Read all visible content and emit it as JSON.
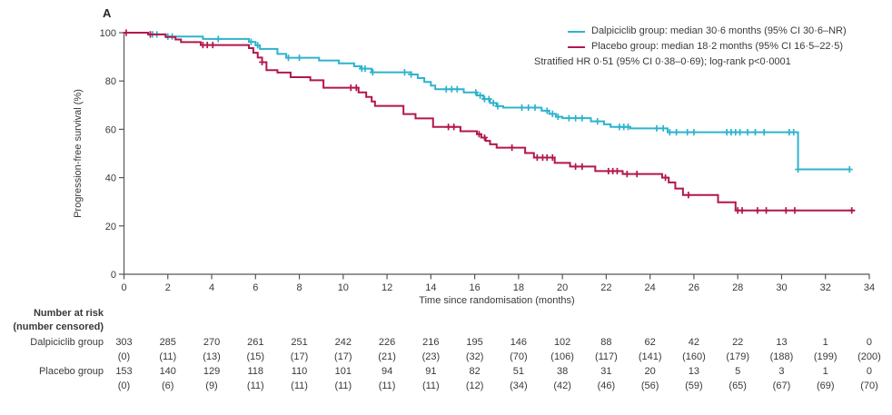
{
  "figure": {
    "panel_label": "A"
  },
  "chart_data": {
    "type": "line",
    "subtype": "kaplan-meier-step",
    "title": "",
    "xlabel": "Time since randomisation (months)",
    "ylabel": "Progression-free survival (%)",
    "xlim": [
      0,
      34
    ],
    "ylim": [
      0,
      100
    ],
    "x_ticks": [
      0,
      2,
      4,
      6,
      8,
      10,
      12,
      14,
      16,
      18,
      20,
      22,
      24,
      26,
      28,
      30,
      32,
      34
    ],
    "y_ticks": [
      0,
      20,
      40,
      60,
      80,
      100
    ],
    "grid": false,
    "legend_position": "top-right",
    "axis_color": "#55565A",
    "text_color": "#39393B",
    "legend": [
      {
        "label": "Dalpiciclib group: median 30·6 months (95% CI 30·6–NR)",
        "color": "#2EB3CD"
      },
      {
        "label": "Placebo group: median 18·2 months (95% CI 16·5–22·5)",
        "color": "#B3164E"
      }
    ],
    "annotation": "Stratified HR 0·51 (95% CI 0·38–0·69); log-rank p<0·0001",
    "series": [
      {
        "name": "Dalpiciclib group",
        "color": "#2EB3CD",
        "steps": [
          [
            0,
            100
          ],
          [
            1.1,
            99.3
          ],
          [
            1.9,
            98.4
          ],
          [
            3.6,
            97.4
          ],
          [
            5.7,
            96.2
          ],
          [
            6.0,
            94.8
          ],
          [
            6.2,
            93.3
          ],
          [
            7.0,
            91.2
          ],
          [
            7.4,
            89.6
          ],
          [
            8.9,
            88.5
          ],
          [
            9.8,
            87.3
          ],
          [
            10.5,
            86.1
          ],
          [
            10.8,
            85.1
          ],
          [
            11.3,
            83.6
          ],
          [
            13.1,
            82.7
          ],
          [
            13.4,
            81.2
          ],
          [
            13.7,
            79.6
          ],
          [
            14.0,
            78.1
          ],
          [
            14.2,
            76.6
          ],
          [
            15.5,
            75.3
          ],
          [
            16.1,
            74.0
          ],
          [
            16.4,
            72.5
          ],
          [
            16.7,
            70.9
          ],
          [
            17.0,
            69.6
          ],
          [
            17.3,
            69.0
          ],
          [
            19.05,
            67.7
          ],
          [
            19.4,
            66.4
          ],
          [
            19.7,
            65.2
          ],
          [
            20.0,
            64.6
          ],
          [
            21.3,
            63.3
          ],
          [
            21.9,
            62.1
          ],
          [
            22.2,
            61.0
          ],
          [
            23.1,
            60.4
          ],
          [
            24.8,
            58.8
          ],
          [
            30.75,
            43.4
          ]
        ],
        "censors": [
          1.3,
          1.5,
          2.0,
          2.2,
          4.3,
          5.8,
          6.1,
          7.5,
          8.0,
          10.85,
          11.0,
          11.35,
          12.8,
          13.1,
          14.7,
          14.95,
          15.2,
          16.05,
          16.25,
          16.45,
          16.65,
          16.85,
          17.05,
          18.15,
          18.45,
          18.75,
          19.3,
          19.55,
          19.8,
          20.3,
          20.6,
          20.9,
          21.6,
          22.6,
          22.8,
          23.0,
          24.3,
          24.6,
          24.9,
          25.2,
          25.7,
          26.0,
          27.5,
          27.7,
          27.9,
          28.1,
          28.45,
          28.8,
          29.2,
          30.35,
          30.55,
          30.75,
          33.1
        ],
        "end": 33.15
      },
      {
        "name": "Placebo group",
        "color": "#B3164E",
        "steps": [
          [
            0,
            100
          ],
          [
            1.1,
            99.3
          ],
          [
            1.9,
            98.2
          ],
          [
            2.35,
            97.2
          ],
          [
            2.6,
            96.1
          ],
          [
            3.5,
            94.9
          ],
          [
            5.7,
            93.6
          ],
          [
            5.9,
            91.7
          ],
          [
            6.1,
            89.7
          ],
          [
            6.3,
            87.8
          ],
          [
            6.5,
            84.5
          ],
          [
            7.0,
            83.5
          ],
          [
            7.6,
            81.6
          ],
          [
            8.5,
            80.3
          ],
          [
            9.1,
            77.2
          ],
          [
            10.7,
            75.3
          ],
          [
            11.05,
            73.4
          ],
          [
            11.3,
            71.5
          ],
          [
            11.45,
            69.7
          ],
          [
            12.75,
            66.3
          ],
          [
            13.3,
            64.5
          ],
          [
            14.1,
            61.0
          ],
          [
            15.35,
            59.2
          ],
          [
            16.1,
            58.0
          ],
          [
            16.3,
            56.6
          ],
          [
            16.5,
            55.2
          ],
          [
            16.7,
            53.8
          ],
          [
            17.0,
            52.4
          ],
          [
            18.3,
            50.2
          ],
          [
            18.7,
            48.3
          ],
          [
            19.65,
            46.1
          ],
          [
            20.35,
            44.6
          ],
          [
            21.5,
            42.7
          ],
          [
            22.75,
            41.5
          ],
          [
            24.55,
            40.0
          ],
          [
            24.85,
            38.0
          ],
          [
            25.15,
            35.5
          ],
          [
            25.5,
            32.8
          ],
          [
            27.1,
            29.8
          ],
          [
            27.9,
            26.4
          ]
        ],
        "censors": [
          0.1,
          1.2,
          3.6,
          3.8,
          4.05,
          6.3,
          10.35,
          10.6,
          14.8,
          15.05,
          16.2,
          16.45,
          17.7,
          18.85,
          19.1,
          19.3,
          19.55,
          20.6,
          20.9,
          22.1,
          22.3,
          22.5,
          22.95,
          23.4,
          24.7,
          25.75,
          28.0,
          28.2,
          28.9,
          29.3,
          30.2,
          30.6,
          33.2
        ],
        "end": 33.35
      }
    ]
  },
  "risk_table": {
    "header": "Number at risk",
    "subheader": "(number censored)",
    "times": [
      0,
      2,
      4,
      6,
      8,
      10,
      12,
      14,
      16,
      18,
      20,
      22,
      24,
      26,
      28,
      30,
      32,
      34
    ],
    "rows": [
      {
        "label": "Dalpiciclib group",
        "at_risk": [
          303,
          285,
          270,
          261,
          251,
          242,
          226,
          216,
          195,
          146,
          102,
          88,
          62,
          42,
          22,
          13,
          1,
          0
        ],
        "censored": [
          "(0)",
          "(11)",
          "(13)",
          "(15)",
          "(17)",
          "(17)",
          "(21)",
          "(23)",
          "(32)",
          "(70)",
          "(106)",
          "(117)",
          "(141)",
          "(160)",
          "(179)",
          "(188)",
          "(199)",
          "(200)"
        ]
      },
      {
        "label": "Placebo group",
        "at_risk": [
          153,
          140,
          129,
          118,
          110,
          101,
          94,
          91,
          82,
          51,
          38,
          31,
          20,
          13,
          5,
          3,
          1,
          0
        ],
        "censored": [
          "(0)",
          "(6)",
          "(9)",
          "(11)",
          "(11)",
          "(11)",
          "(11)",
          "(11)",
          "(12)",
          "(34)",
          "(42)",
          "(46)",
          "(56)",
          "(59)",
          "(65)",
          "(67)",
          "(69)",
          "(70)"
        ]
      }
    ]
  }
}
